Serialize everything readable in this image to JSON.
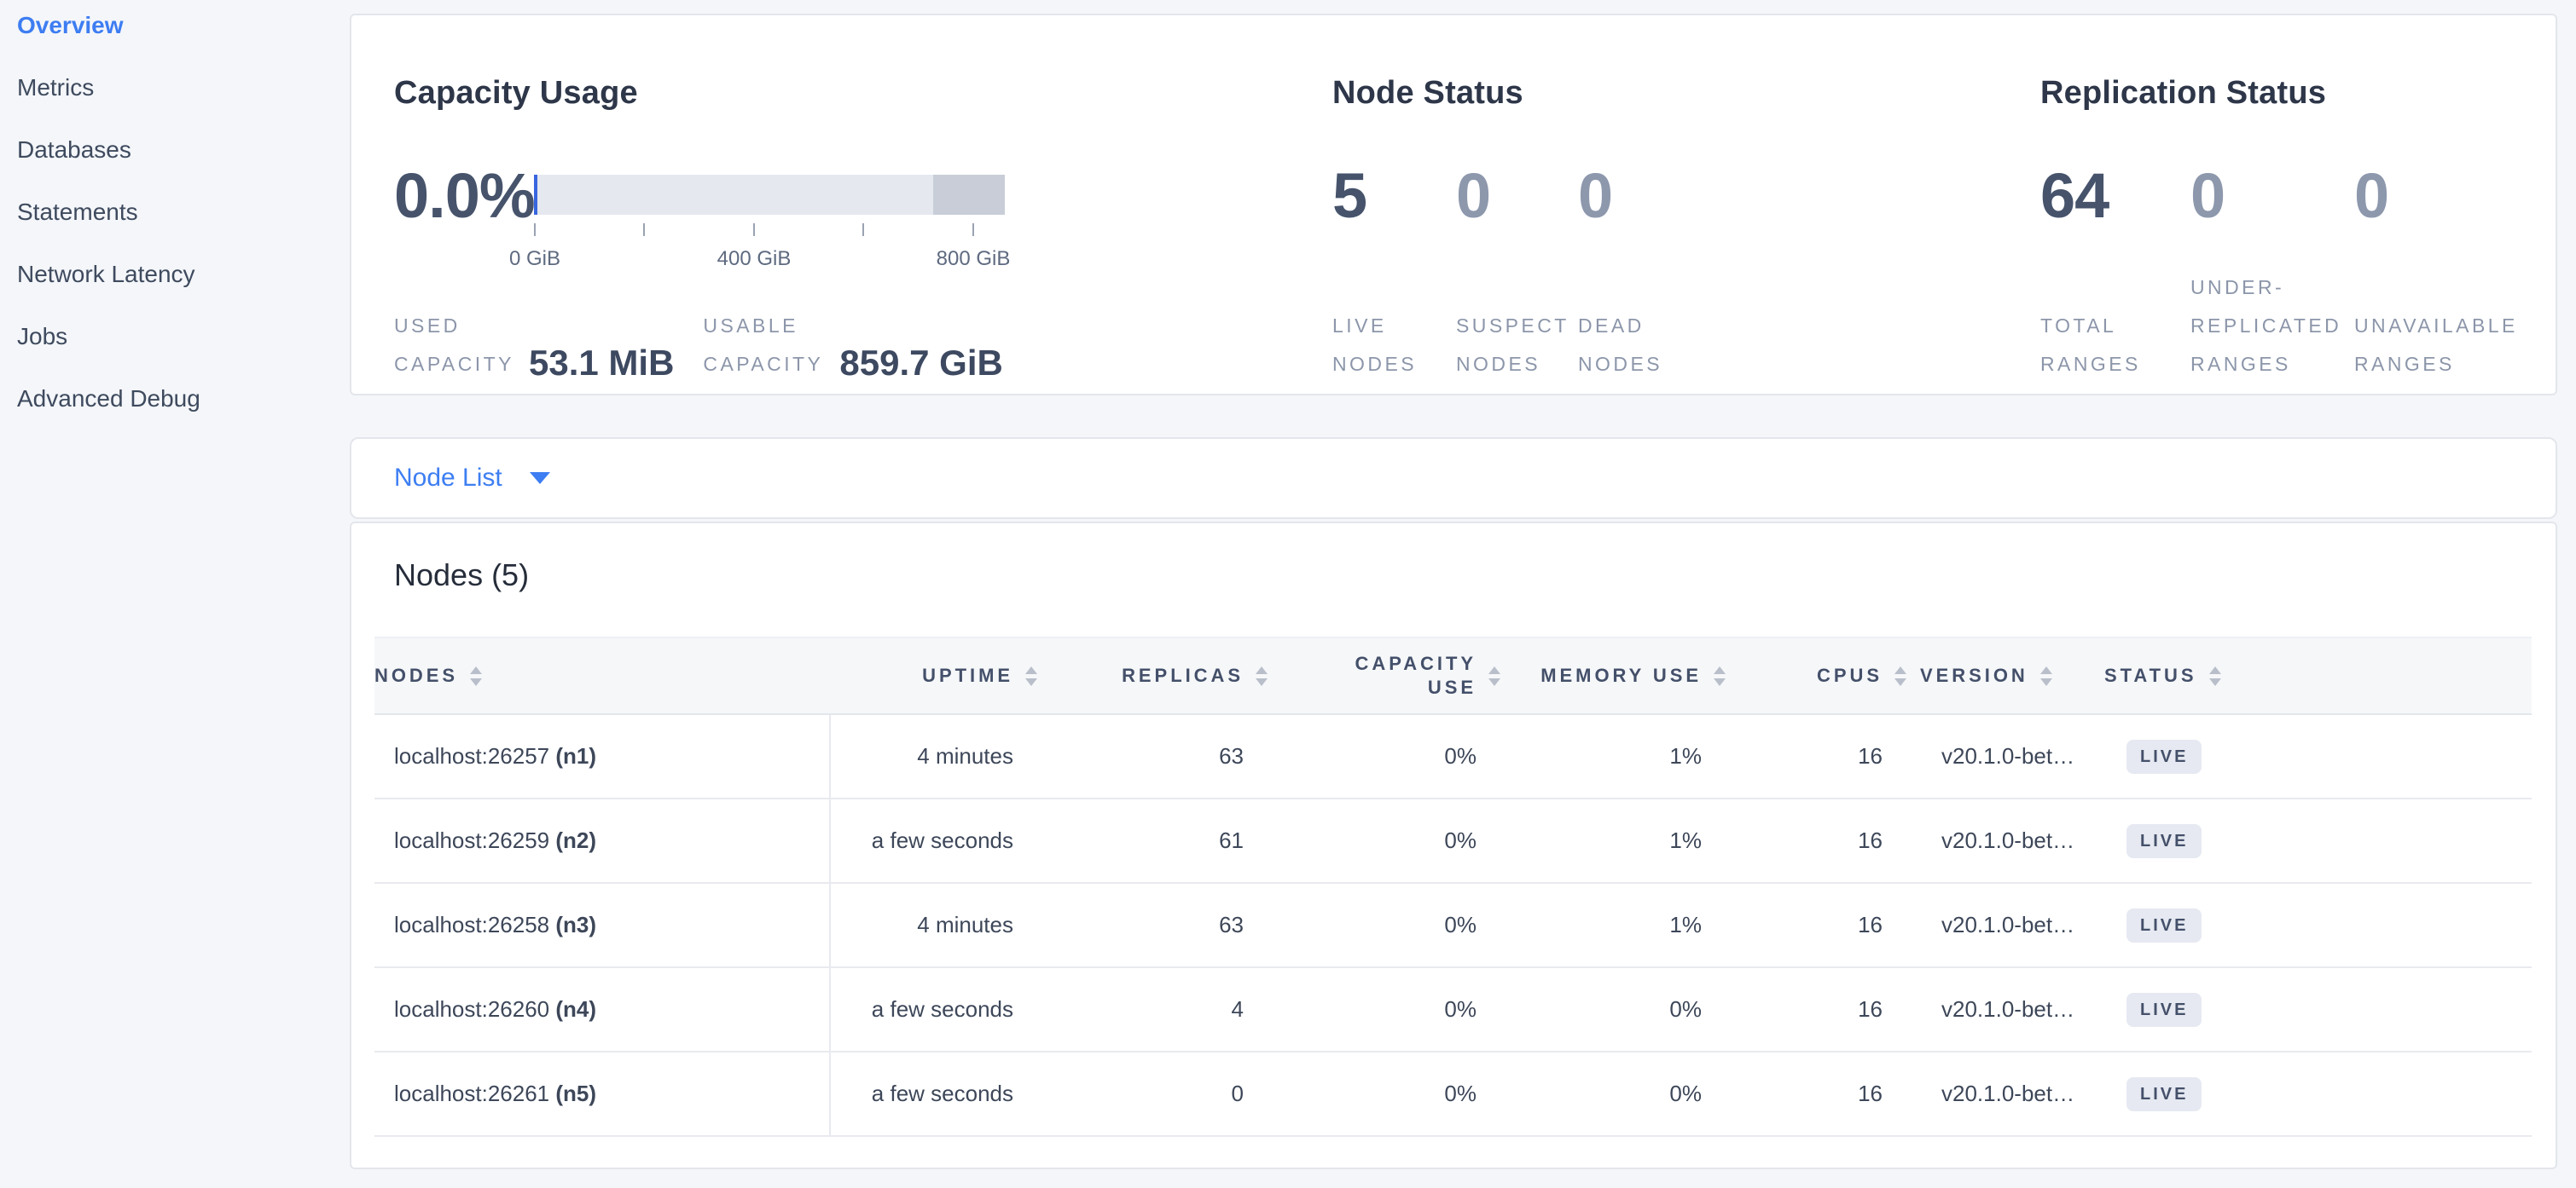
{
  "sidebar": {
    "items": [
      {
        "label": "Overview",
        "active": true
      },
      {
        "label": "Metrics",
        "active": false
      },
      {
        "label": "Databases",
        "active": false
      },
      {
        "label": "Statements",
        "active": false
      },
      {
        "label": "Network Latency",
        "active": false
      },
      {
        "label": "Jobs",
        "active": false
      },
      {
        "label": "Advanced Debug",
        "active": false
      }
    ]
  },
  "summary": {
    "capacity": {
      "title": "Capacity Usage",
      "percent": "0.0%",
      "gauge": {
        "used_percent": 0.0,
        "reserved_tail_percent": 15.3
      },
      "axis_labels": [
        "0 GiB",
        "400 GiB",
        "800 GiB"
      ],
      "stats": [
        {
          "label": "USED\nCAPACITY",
          "value": "53.1 MiB"
        },
        {
          "label": "USABLE\nCAPACITY",
          "value": "859.7 GiB"
        }
      ]
    },
    "node_status": {
      "title": "Node Status",
      "stats": [
        {
          "value": "5",
          "label": "LIVE\nNODES"
        },
        {
          "value": "0",
          "label": "SUSPECT\nNODES"
        },
        {
          "value": "0",
          "label": "DEAD\nNODES"
        }
      ]
    },
    "replication": {
      "title": "Replication Status",
      "stats": [
        {
          "value": "64",
          "label": "TOTAL\nRANGES"
        },
        {
          "value": "0",
          "label": "UNDER-\nREPLICATED\nRANGES"
        },
        {
          "value": "0",
          "label": "UNAVAILABLE\nRANGES"
        }
      ]
    }
  },
  "node_list": {
    "label": "Node List"
  },
  "nodes_table": {
    "title": "Nodes (5)",
    "columns": [
      {
        "key": "name",
        "label": "NODES",
        "align": "left"
      },
      {
        "key": "uptime",
        "label": "UPTIME",
        "align": "right"
      },
      {
        "key": "replicas",
        "label": "REPLICAS",
        "align": "right"
      },
      {
        "key": "capacity_use",
        "label": "CAPACITY\nUSE",
        "align": "right"
      },
      {
        "key": "memory_use",
        "label": "MEMORY USE",
        "align": "right"
      },
      {
        "key": "cpus",
        "label": "CPUS",
        "align": "right"
      },
      {
        "key": "version",
        "label": "VERSION",
        "align": "left"
      },
      {
        "key": "status",
        "label": "STATUS",
        "align": "left"
      }
    ],
    "rows": [
      {
        "address": "localhost:26257",
        "node_id": "(n1)",
        "uptime": "4 minutes",
        "replicas": "63",
        "capacity_use": "0%",
        "memory_use": "1%",
        "cpus": "16",
        "version": "v20.1.0-bet…",
        "status": "LIVE"
      },
      {
        "address": "localhost:26259",
        "node_id": "(n2)",
        "uptime": "a few seconds",
        "replicas": "61",
        "capacity_use": "0%",
        "memory_use": "1%",
        "cpus": "16",
        "version": "v20.1.0-bet…",
        "status": "LIVE"
      },
      {
        "address": "localhost:26258",
        "node_id": "(n3)",
        "uptime": "4 minutes",
        "replicas": "63",
        "capacity_use": "0%",
        "memory_use": "1%",
        "cpus": "16",
        "version": "v20.1.0-bet…",
        "status": "LIVE"
      },
      {
        "address": "localhost:26260",
        "node_id": "(n4)",
        "uptime": "a few seconds",
        "replicas": "4",
        "capacity_use": "0%",
        "memory_use": "0%",
        "cpus": "16",
        "version": "v20.1.0-bet…",
        "status": "LIVE"
      },
      {
        "address": "localhost:26261",
        "node_id": "(n5)",
        "uptime": "a few seconds",
        "replicas": "0",
        "capacity_use": "0%",
        "memory_use": "0%",
        "cpus": "16",
        "version": "v20.1.0-bet…",
        "status": "LIVE"
      }
    ]
  }
}
